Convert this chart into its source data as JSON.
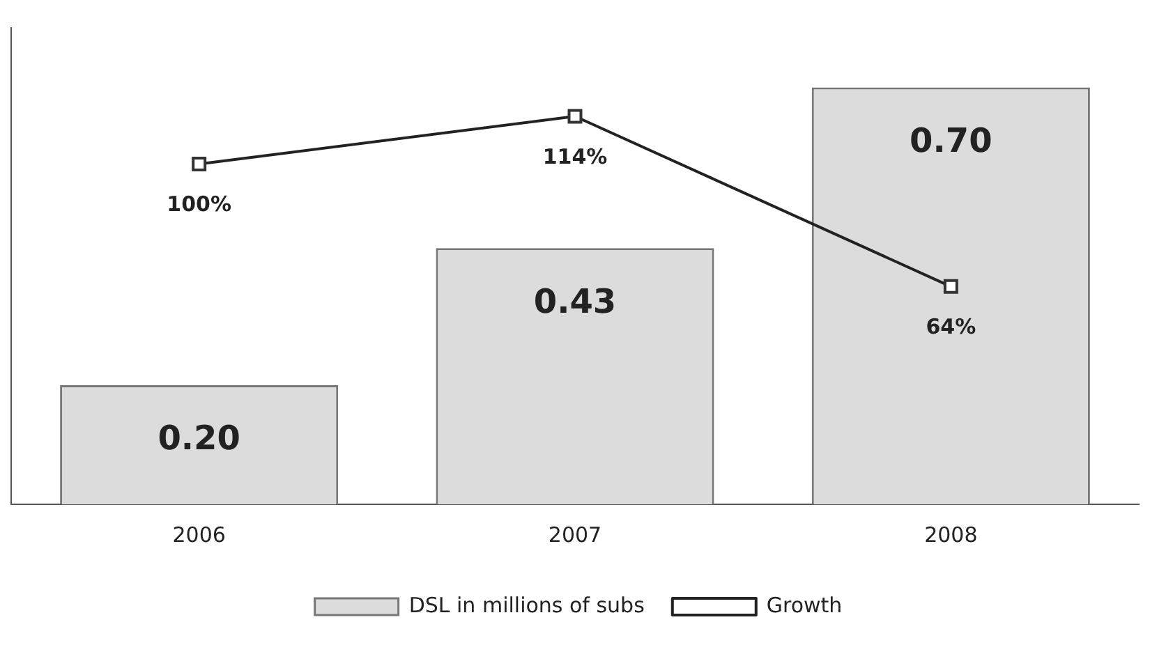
{
  "chart_data": {
    "type": "bar",
    "categories": [
      "2006",
      "2007",
      "2008"
    ],
    "series": [
      {
        "name": "DSL in millions of subs",
        "type": "bar",
        "color": "#dcdcdc",
        "values": [
          0.2,
          0.43,
          0.7
        ],
        "value_labels": [
          "0.20",
          "0.43",
          "0.70"
        ]
      },
      {
        "name": "Growth",
        "type": "line",
        "axis": "y2",
        "color": "#222222",
        "values": [
          100,
          114,
          64
        ],
        "value_labels": [
          "100%",
          "114%",
          "64%"
        ],
        "marker": "square"
      }
    ],
    "tick_labels": "x",
    "grid": false,
    "legend": "bottom"
  }
}
